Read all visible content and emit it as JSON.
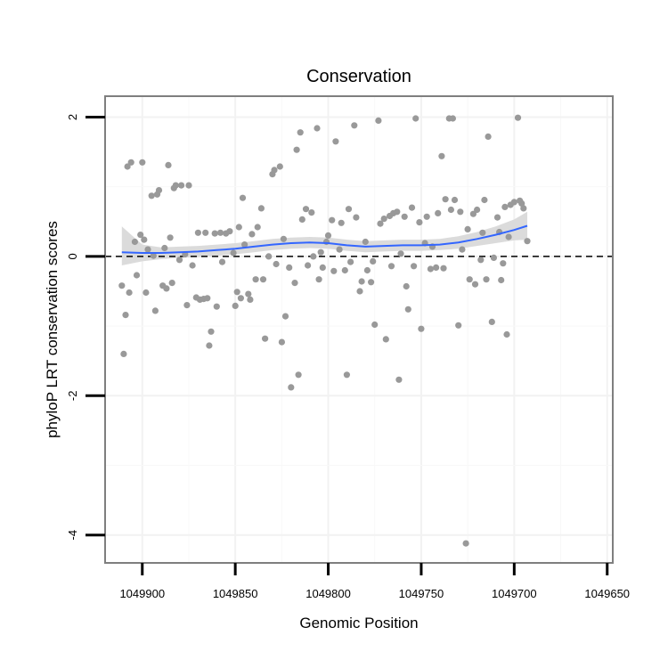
{
  "chart_data": {
    "type": "scatter",
    "title": "Conservation",
    "xlabel": "Genomic Position",
    "ylabel": "phyloP LRT conservation scores",
    "x_reversed": true,
    "xlim": [
      1049920,
      1049647
    ],
    "ylim": [
      -4.4,
      2.3
    ],
    "x_ticks": [
      1049900,
      1049850,
      1049800,
      1049750,
      1049700,
      1049650
    ],
    "x_tick_labels": [
      "1049900",
      "1049850",
      "1049800",
      "1049750",
      "1049700",
      "1049650"
    ],
    "y_ticks": [
      -4,
      -2,
      0,
      2
    ],
    "y_tick_labels": [
      "-4",
      "-2",
      "0",
      "2"
    ],
    "grid": true,
    "reference_line": {
      "y": 0,
      "style": "dashed",
      "color": "#000000"
    },
    "point_color": "#999999",
    "smooth_color": "#3366ff",
    "ribbon_color": "#d9d9d9",
    "points": [
      [
        1049911,
        -0.42
      ],
      [
        1049910,
        -1.4
      ],
      [
        1049909,
        -0.84
      ],
      [
        1049908,
        1.29
      ],
      [
        1049907,
        -0.52
      ],
      [
        1049906,
        1.35
      ],
      [
        1049904,
        0.21
      ],
      [
        1049903,
        -0.27
      ],
      [
        1049901,
        0.31
      ],
      [
        1049900,
        1.35
      ],
      [
        1049899,
        0.24
      ],
      [
        1049898,
        -0.52
      ],
      [
        1049897,
        0.1
      ],
      [
        1049895,
        0.87
      ],
      [
        1049894,
        0.01
      ],
      [
        1049893,
        -0.78
      ],
      [
        1049892,
        0.89
      ],
      [
        1049891,
        0.95
      ],
      [
        1049889,
        -0.42
      ],
      [
        1049888,
        0.12
      ],
      [
        1049887,
        -0.46
      ],
      [
        1049886,
        1.31
      ],
      [
        1049885,
        0.27
      ],
      [
        1049884,
        -0.38
      ],
      [
        1049883,
        0.98
      ],
      [
        1049882,
        1.02
      ],
      [
        1049880,
        -0.05
      ],
      [
        1049879,
        1.02
      ],
      [
        1049877,
        0.03
      ],
      [
        1049876,
        -0.7
      ],
      [
        1049875,
        1.02
      ],
      [
        1049873,
        -0.13
      ],
      [
        1049871,
        -0.59
      ],
      [
        1049870,
        0.34
      ],
      [
        1049869,
        -0.62
      ],
      [
        1049867,
        -0.61
      ],
      [
        1049866,
        0.34
      ],
      [
        1049865,
        -0.6
      ],
      [
        1049864,
        -1.28
      ],
      [
        1049863,
        -1.08
      ],
      [
        1049861,
        0.33
      ],
      [
        1049860,
        -0.72
      ],
      [
        1049858,
        0.34
      ],
      [
        1049857,
        -0.08
      ],
      [
        1049855,
        0.33
      ],
      [
        1049853,
        0.36
      ],
      [
        1049851,
        0.05
      ],
      [
        1049850,
        -0.71
      ],
      [
        1049849,
        -0.51
      ],
      [
        1049848,
        0.42
      ],
      [
        1049847,
        -0.6
      ],
      [
        1049846,
        0.84
      ],
      [
        1049845,
        0.17
      ],
      [
        1049843,
        -0.54
      ],
      [
        1049842,
        -0.62
      ],
      [
        1049841,
        0.32
      ],
      [
        1049839,
        -0.33
      ],
      [
        1049838,
        0.42
      ],
      [
        1049836,
        0.69
      ],
      [
        1049835,
        -0.33
      ],
      [
        1049834,
        -1.18
      ],
      [
        1049832,
        0.0
      ],
      [
        1049830,
        1.18
      ],
      [
        1049829,
        1.24
      ],
      [
        1049828,
        -0.11
      ],
      [
        1049826,
        1.29
      ],
      [
        1049825,
        -1.23
      ],
      [
        1049824,
        0.25
      ],
      [
        1049823,
        -0.86
      ],
      [
        1049821,
        -0.16
      ],
      [
        1049820,
        -1.88
      ],
      [
        1049818,
        -0.38
      ],
      [
        1049817,
        1.53
      ],
      [
        1049816,
        -1.7
      ],
      [
        1049815,
        1.78
      ],
      [
        1049814,
        0.53
      ],
      [
        1049812,
        0.68
      ],
      [
        1049811,
        -0.13
      ],
      [
        1049809,
        0.63
      ],
      [
        1049808,
        0.0
      ],
      [
        1049806,
        1.84
      ],
      [
        1049805,
        -0.33
      ],
      [
        1049804,
        0.06
      ],
      [
        1049803,
        -0.16
      ],
      [
        1049801,
        0.21
      ],
      [
        1049800,
        0.3
      ],
      [
        1049798,
        0.52
      ],
      [
        1049797,
        -0.21
      ],
      [
        1049796,
        1.65
      ],
      [
        1049794,
        0.1
      ],
      [
        1049793,
        0.48
      ],
      [
        1049791,
        -0.2
      ],
      [
        1049790,
        -1.7
      ],
      [
        1049789,
        0.68
      ],
      [
        1049788,
        -0.08
      ],
      [
        1049786,
        1.88
      ],
      [
        1049785,
        0.56
      ],
      [
        1049783,
        -0.5
      ],
      [
        1049782,
        -0.36
      ],
      [
        1049780,
        0.21
      ],
      [
        1049779,
        -0.2
      ],
      [
        1049777,
        -0.37
      ],
      [
        1049776,
        -0.07
      ],
      [
        1049775,
        -0.98
      ],
      [
        1049773,
        1.95
      ],
      [
        1049772,
        0.47
      ],
      [
        1049770,
        0.54
      ],
      [
        1049769,
        -1.19
      ],
      [
        1049767,
        0.58
      ],
      [
        1049766,
        -0.14
      ],
      [
        1049765,
        0.62
      ],
      [
        1049763,
        0.64
      ],
      [
        1049762,
        -1.77
      ],
      [
        1049761,
        0.04
      ],
      [
        1049759,
        0.57
      ],
      [
        1049758,
        -0.43
      ],
      [
        1049757,
        -0.76
      ],
      [
        1049755,
        0.7
      ],
      [
        1049754,
        -0.14
      ],
      [
        1049753,
        1.98
      ],
      [
        1049751,
        0.49
      ],
      [
        1049750,
        -1.04
      ],
      [
        1049748,
        0.19
      ],
      [
        1049747,
        0.57
      ],
      [
        1049745,
        -0.18
      ],
      [
        1049744,
        0.14
      ],
      [
        1049742,
        -0.16
      ],
      [
        1049741,
        0.62
      ],
      [
        1049739,
        1.44
      ],
      [
        1049738,
        -0.17
      ],
      [
        1049737,
        0.82
      ],
      [
        1049735,
        1.98
      ],
      [
        1049734,
        0.67
      ],
      [
        1049733,
        1.98
      ],
      [
        1049732,
        0.81
      ],
      [
        1049730,
        -0.99
      ],
      [
        1049729,
        0.64
      ],
      [
        1049728,
        0.1
      ],
      [
        1049726,
        -4.12
      ],
      [
        1049725,
        0.39
      ],
      [
        1049724,
        -0.33
      ],
      [
        1049722,
        0.61
      ],
      [
        1049721,
        -0.4
      ],
      [
        1049720,
        0.67
      ],
      [
        1049718,
        -0.05
      ],
      [
        1049717,
        0.34
      ],
      [
        1049716,
        0.81
      ],
      [
        1049715,
        -0.33
      ],
      [
        1049714,
        1.72
      ],
      [
        1049712,
        -0.94
      ],
      [
        1049711,
        -0.02
      ],
      [
        1049709,
        0.56
      ],
      [
        1049708,
        0.35
      ],
      [
        1049707,
        -0.34
      ],
      [
        1049706,
        -0.1
      ],
      [
        1049705,
        0.71
      ],
      [
        1049704,
        -1.12
      ],
      [
        1049703,
        0.28
      ],
      [
        1049702,
        0.74
      ],
      [
        1049700,
        0.78
      ],
      [
        1049698,
        1.99
      ],
      [
        1049697,
        0.8
      ],
      [
        1049696,
        0.76
      ],
      [
        1049695,
        0.69
      ],
      [
        1049693,
        0.22
      ]
    ],
    "smooth": {
      "x": [
        1049911,
        1049900,
        1049890,
        1049880,
        1049870,
        1049860,
        1049850,
        1049840,
        1049830,
        1049820,
        1049810,
        1049800,
        1049790,
        1049780,
        1049770,
        1049760,
        1049750,
        1049740,
        1049730,
        1049720,
        1049710,
        1049700,
        1049693
      ],
      "y": [
        0.06,
        0.05,
        0.05,
        0.06,
        0.07,
        0.09,
        0.11,
        0.14,
        0.17,
        0.19,
        0.2,
        0.19,
        0.16,
        0.14,
        0.15,
        0.16,
        0.16,
        0.17,
        0.2,
        0.25,
        0.31,
        0.38,
        0.44
      ],
      "lower": [
        -0.13,
        -0.07,
        -0.04,
        -0.02,
        -0.01,
        0.01,
        0.03,
        0.06,
        0.09,
        0.11,
        0.12,
        0.11,
        0.08,
        0.06,
        0.07,
        0.08,
        0.08,
        0.09,
        0.11,
        0.15,
        0.19,
        0.23,
        0.24
      ],
      "upper": [
        0.43,
        0.17,
        0.13,
        0.14,
        0.15,
        0.17,
        0.19,
        0.22,
        0.25,
        0.27,
        0.28,
        0.27,
        0.24,
        0.22,
        0.23,
        0.24,
        0.24,
        0.25,
        0.29,
        0.35,
        0.43,
        0.53,
        0.64
      ]
    }
  }
}
